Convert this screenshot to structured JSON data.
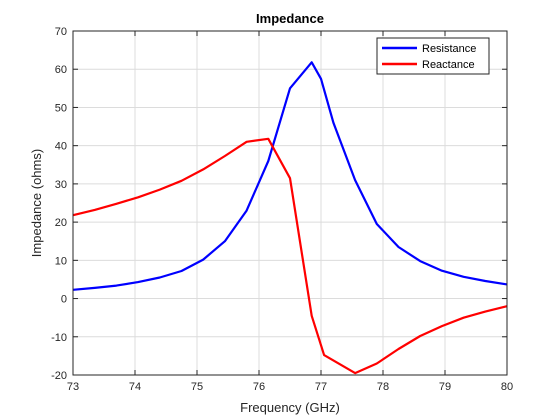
{
  "chart_data": {
    "type": "line",
    "title": "Impedance",
    "xlabel": "Frequency (GHz)",
    "ylabel": "Impedance (ohms)",
    "xlim": [
      73,
      80
    ],
    "ylim": [
      -20,
      70
    ],
    "xticks": [
      73,
      74,
      75,
      76,
      77,
      78,
      79,
      80
    ],
    "yticks": [
      -20,
      -10,
      0,
      10,
      20,
      30,
      40,
      50,
      60,
      70
    ],
    "grid": true,
    "legend_position": "top-right",
    "series": [
      {
        "name": "Resistance",
        "color": "#0000ff",
        "x": [
          73.0,
          73.35,
          73.7,
          74.05,
          74.4,
          74.75,
          75.1,
          75.45,
          75.8,
          76.15,
          76.5,
          76.85,
          77.0,
          77.2,
          77.55,
          77.9,
          78.25,
          78.6,
          78.95,
          79.3,
          79.65,
          80.0
        ],
        "y": [
          2.3,
          2.8,
          3.4,
          4.3,
          5.5,
          7.2,
          10.2,
          15.0,
          23.0,
          36.0,
          55.0,
          61.8,
          57.5,
          46.0,
          31.0,
          19.5,
          13.5,
          9.8,
          7.3,
          5.7,
          4.6,
          3.7
        ]
      },
      {
        "name": "Reactance",
        "color": "#ff0000",
        "x": [
          73.0,
          73.35,
          73.7,
          74.05,
          74.4,
          74.75,
          75.1,
          75.45,
          75.8,
          76.15,
          76.5,
          76.85,
          77.05,
          77.55,
          77.9,
          78.25,
          78.6,
          78.95,
          79.3,
          79.65,
          80.0
        ],
        "y": [
          21.8,
          23.2,
          24.8,
          26.5,
          28.5,
          30.8,
          33.8,
          37.3,
          41.0,
          41.8,
          31.5,
          -4.5,
          -14.8,
          -19.5,
          -17.0,
          -13.2,
          -9.8,
          -7.2,
          -5.0,
          -3.4,
          -2.0
        ]
      }
    ]
  }
}
